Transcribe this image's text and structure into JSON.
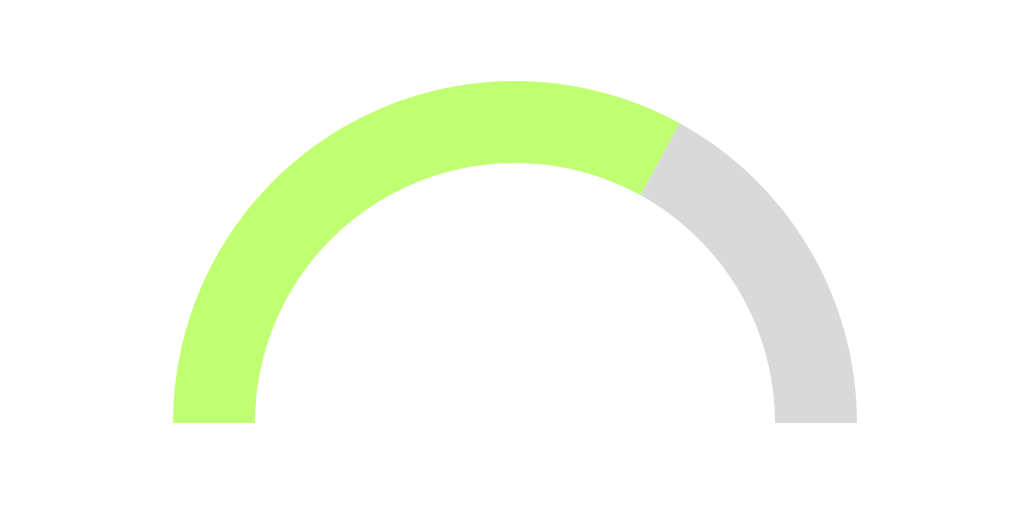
{
  "chart_data": {
    "type": "gauge",
    "value": 0.66,
    "min": 0,
    "max": 1,
    "colors": {
      "value": "#c1ff72",
      "track": "#d9d9d9",
      "background": "#ffffff"
    }
  }
}
